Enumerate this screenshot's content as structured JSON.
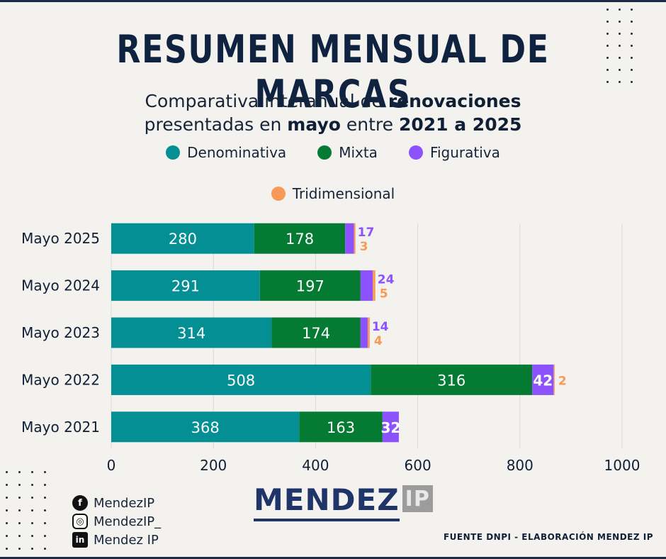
{
  "header": {
    "title": "RESUMEN MENSUAL DE MARCAS",
    "subtitle_line1_prefix": "Comparativa interanual de ",
    "subtitle_line1_bold": "renovaciones",
    "subtitle_line2_prefix": "presentadas en ",
    "subtitle_line2_bold1": "mayo",
    "subtitle_line2_mid": " entre ",
    "subtitle_line2_bold2": "2021 a 2025"
  },
  "colors": {
    "denominativa": "#038f93",
    "mixta": "#047a32",
    "figurativa": "#8c52fe",
    "tridimensional": "#f79a57",
    "grid": "#d9d9d9",
    "text": "#0f1f36"
  },
  "chart_data": {
    "type": "bar",
    "orientation": "horizontal",
    "stacked": true,
    "categories": [
      "Mayo 2025",
      "Mayo 2024",
      "Mayo 2023",
      "Mayo 2022",
      "Mayo 2021"
    ],
    "series": [
      {
        "name": "Denominativa",
        "values": [
          280,
          291,
          314,
          508,
          368
        ]
      },
      {
        "name": "Mixta",
        "values": [
          178,
          197,
          174,
          316,
          163
        ]
      },
      {
        "name": "Figurativa",
        "values": [
          17,
          24,
          14,
          42,
          32
        ]
      },
      {
        "name": "Tridimensional",
        "values": [
          3,
          5,
          4,
          2,
          0
        ]
      }
    ],
    "xlim": [
      0,
      1000
    ],
    "xticks": [
      0,
      200,
      400,
      600,
      800,
      1000
    ],
    "grid": true,
    "legend_position": "top-center"
  },
  "footer": {
    "social": [
      {
        "icon": "facebook-icon",
        "glyph": "f",
        "label": "MendezIP"
      },
      {
        "icon": "instagram-icon",
        "glyph": "◎",
        "label": "MendezIP_"
      },
      {
        "icon": "linkedin-icon",
        "glyph": "in",
        "label": "Mendez IP"
      }
    ],
    "logo_main": "MENDEZ",
    "logo_suffix": "IP",
    "source": "FUENTE DNPI - ELABORACIÓN MENDEZ IP"
  }
}
